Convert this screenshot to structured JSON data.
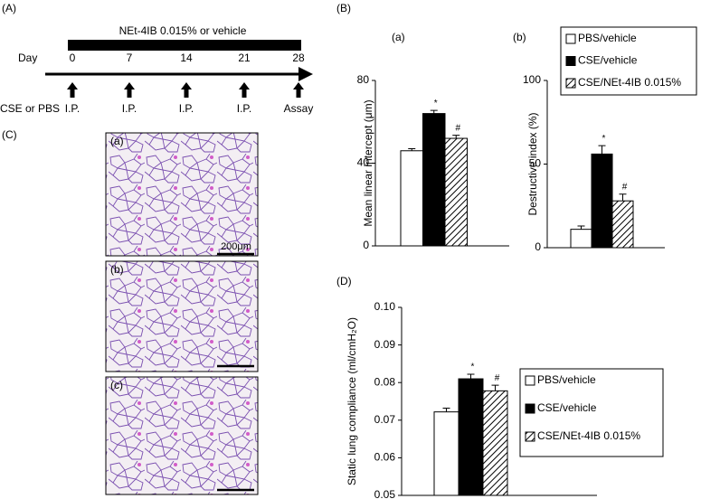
{
  "panel_labels": [
    "(A)",
    "(B)",
    "(C)",
    "(D)"
  ],
  "timeline": {
    "treatment": "NEt-4IB 0.015% or vehicle",
    "day_label": "Day",
    "days": [
      0,
      7,
      14,
      21,
      28
    ],
    "row_label": "CSE or PBS",
    "events": [
      "I.P.",
      "I.P.",
      "I.P.",
      "I.P.",
      "Assay"
    ]
  },
  "histology": {
    "sublabels": [
      "(a)",
      "(b)",
      "(c)"
    ],
    "scale_bar": "200μm"
  },
  "chart_data": [
    {
      "type": "bar",
      "subtitle": "(a)",
      "y_label": "Mean linear intercept (μm)",
      "ylim": [
        0,
        80
      ],
      "yticks": [
        0,
        40,
        80
      ],
      "series": [
        {
          "color": "#ffffff",
          "values": [
            46
          ],
          "errors": [
            1
          ]
        },
        {
          "color": "#000000",
          "values": [
            64
          ],
          "errors": [
            1.5
          ],
          "marker": "*"
        },
        {
          "color": "hatch",
          "values": [
            52
          ],
          "errors": [
            1.5
          ],
          "marker": "#"
        }
      ]
    },
    {
      "type": "bar",
      "subtitle": "(b)",
      "y_label": "Destructive index (%)",
      "ylim": [
        0,
        100
      ],
      "yticks": [
        0,
        50,
        100
      ],
      "series": [
        {
          "name": "PBS/vehicle",
          "color": "#ffffff",
          "values": [
            11
          ],
          "errors": [
            2
          ]
        },
        {
          "name": "CSE/vehicle",
          "color": "#000000",
          "values": [
            56
          ],
          "errors": [
            5
          ],
          "marker": "*"
        },
        {
          "name": "CSE/NEt-4IB 0.015%",
          "color": "hatch",
          "values": [
            28
          ],
          "errors": [
            4
          ],
          "marker": "#"
        }
      ]
    },
    {
      "type": "bar",
      "y_label": "Static lung compliance  (ml/cmH₂O)",
      "ylim": [
        0.05,
        0.1
      ],
      "yticks": [
        0.05,
        0.06,
        0.07,
        0.08,
        0.09,
        {
          "value": 0.1,
          "label": "0.10"
        }
      ],
      "series": [
        {
          "name": "PBS/vehicle",
          "color": "#ffffff",
          "values": [
            0.0722
          ],
          "errors": [
            0.001
          ]
        },
        {
          "name": "CSE/vehicle",
          "color": "#000000",
          "values": [
            0.081
          ],
          "errors": [
            0.0012
          ],
          "marker": "*"
        },
        {
          "name": "CSE/NEt-4IB 0.015%",
          "color": "hatch",
          "values": [
            0.0778
          ],
          "errors": [
            0.0015
          ],
          "marker": "#"
        }
      ]
    }
  ]
}
